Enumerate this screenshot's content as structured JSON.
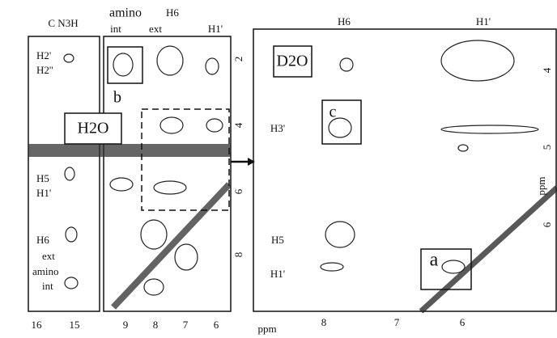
{
  "panel_left": {
    "header": "C N3H",
    "row_labels": [
      "H2'",
      "H2''",
      "H5",
      "H1'",
      "H6",
      "ext",
      "amino",
      "int"
    ],
    "x_ticks": [
      "16",
      "15"
    ]
  },
  "panel_middle": {
    "header_amino": "amino",
    "header_int": "int",
    "header_ext": "ext",
    "header_h6": "H6",
    "header_h1": "H1'",
    "box_b": "b",
    "solvent": "H2O",
    "y_ticks": [
      "2",
      "4",
      "6",
      "8"
    ],
    "x_ticks": [
      "9",
      "8",
      "7",
      "6"
    ]
  },
  "panel_right": {
    "header_h6": "H6",
    "header_h1": "H1'",
    "solvent": "D2O",
    "row_labels": [
      "H3'",
      "H5",
      "H1'"
    ],
    "box_c": "c",
    "box_a": "a",
    "y_ticks": [
      "4",
      "5",
      "6"
    ],
    "y_unit": "ppm",
    "x_ticks": [
      "8",
      "7",
      "6"
    ],
    "x_unit": "ppm"
  }
}
